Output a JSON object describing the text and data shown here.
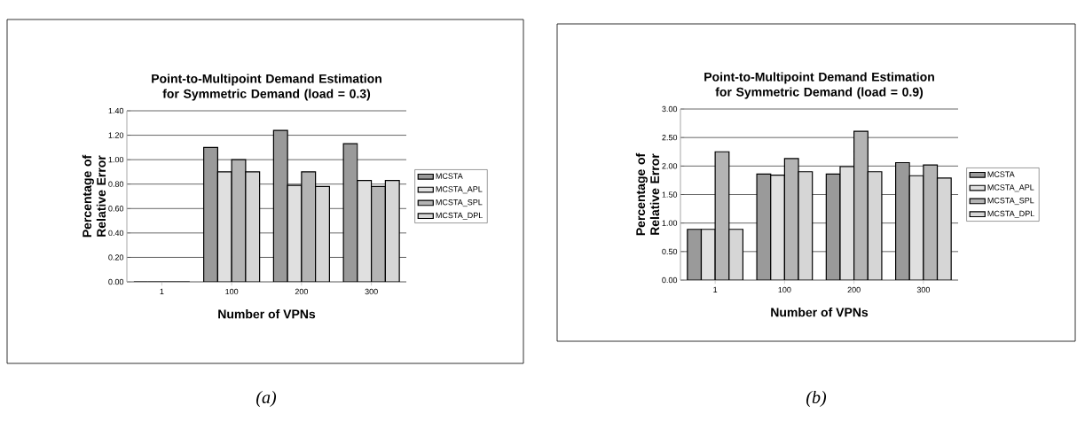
{
  "chart_data": [
    {
      "type": "bar",
      "title": "Point-to-Multipoint Demand Estimation for Symmetric Demand  (load = 0.3)",
      "xlabel": "Number of VPNs",
      "ylabel": "Percentage of Relative Error",
      "categories": [
        "1",
        "100",
        "200",
        "300"
      ],
      "series": [
        {
          "name": "MCSTA",
          "color": "#9a9a9a",
          "values": [
            0,
            1.1,
            1.24,
            1.13
          ]
        },
        {
          "name": "MCSTA_APL",
          "color": "#e0e0e0",
          "values": [
            0,
            0.9,
            0.79,
            0.83
          ]
        },
        {
          "name": "MCSTA_SPL",
          "color": "#b4b4b4",
          "values": [
            0,
            1.0,
            0.9,
            0.78
          ]
        },
        {
          "name": "MCSTA_DPL",
          "color": "#d6d6d6",
          "values": [
            0,
            0.9,
            0.78,
            0.83
          ]
        }
      ],
      "ylim": [
        0,
        1.4
      ],
      "yticks": [
        {
          "value": 0,
          "label": "0.00"
        },
        {
          "value": 0.2,
          "label": "0.20"
        },
        {
          "value": 0.4,
          "label": "0.40"
        },
        {
          "value": 0.6,
          "label": "0.60"
        },
        {
          "value": 0.8,
          "label": "0.80"
        },
        {
          "value": 1.0,
          "label": "1.00"
        },
        {
          "value": 1.2,
          "label": "1.20"
        },
        {
          "value": 1.4,
          "label": "1.40"
        }
      ],
      "grid": "y",
      "legend": "right",
      "annotations": [
        "(a)"
      ]
    },
    {
      "type": "bar",
      "title": "Point-to-Multipoint Demand Estimation for Symmetric Demand  (load = 0.9)",
      "xlabel": "Number of VPNs",
      "ylabel": "Percentage of Relative Error",
      "categories": [
        "1",
        "100",
        "200",
        "300"
      ],
      "series": [
        {
          "name": "MCSTA",
          "color": "#9a9a9a",
          "values": [
            0.89,
            1.86,
            1.86,
            2.06
          ]
        },
        {
          "name": "MCSTA_APL",
          "color": "#e0e0e0",
          "values": [
            0.89,
            1.84,
            1.99,
            1.83
          ]
        },
        {
          "name": "MCSTA_SPL",
          "color": "#b4b4b4",
          "values": [
            2.25,
            2.13,
            2.61,
            2.02
          ]
        },
        {
          "name": "MCSTA_DPL",
          "color": "#d6d6d6",
          "values": [
            0.89,
            1.9,
            1.9,
            1.79
          ]
        }
      ],
      "ylim": [
        0,
        3
      ],
      "yticks": [
        {
          "value": 0,
          "label": "0.00"
        },
        {
          "value": 0.5,
          "label": "0.50"
        },
        {
          "value": 1.0,
          "label": "1.00"
        },
        {
          "value": 1.5,
          "label": "1.50"
        },
        {
          "value": 2.0,
          "label": "2.00"
        },
        {
          "value": 2.5,
          "label": "2.50"
        },
        {
          "value": 3.0,
          "label": "3.00"
        }
      ],
      "grid": "y",
      "legend": "right",
      "annotations": [
        "(b)"
      ]
    }
  ]
}
